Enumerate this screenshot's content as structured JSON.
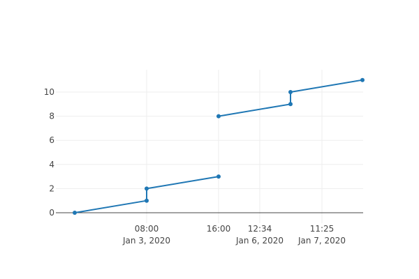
{
  "chart_data": {
    "type": "line",
    "title": "",
    "xlabel": "",
    "ylabel": "",
    "grid": true,
    "legend": "none",
    "line_color": "#1f77b4",
    "ylim": [
      -0.6,
      11.8
    ],
    "x_axis_kind": "break-category-axis",
    "x_ticks": [
      {
        "label": "08:00",
        "sublabel": "Jan 3, 2020"
      },
      {
        "label": "16:00",
        "sublabel": ""
      },
      {
        "label": "12:34",
        "sublabel": "Jan 6, 2020"
      },
      {
        "label": "11:25",
        "sublabel": "Jan 7, 2020"
      }
    ],
    "y_ticks": [
      0,
      2,
      4,
      6,
      8,
      10
    ],
    "series": [
      {
        "x": [
          "Jan 3, 2020 00:00",
          "Jan 3, 2020 08:00",
          "Jan 3, 2020 08:00",
          "Jan 3, 2020 16:00",
          "Jan 6, 2020 16:00",
          "Jan 7, 2020 04:00",
          "Jan 7, 2020 04:00",
          "Jan 7, 2020 16:00"
        ],
        "y": [
          0,
          1,
          2,
          3,
          8,
          9,
          10,
          11
        ],
        "segments": [
          [
            0,
            1,
            2,
            3
          ],
          [
            4,
            5,
            6,
            7
          ]
        ]
      }
    ]
  }
}
